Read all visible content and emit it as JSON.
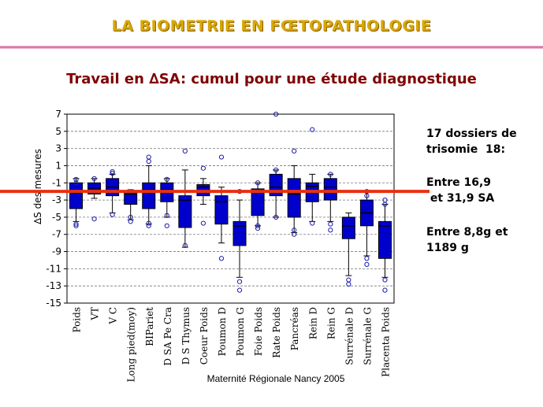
{
  "header": {
    "title": "LA BIOMETRIE EN FŒTOPATHOLOGIE",
    "subtitle": "Travail en ∆SA: cumul pour une étude diagnostique"
  },
  "notes": {
    "cases": "17 dossiers de\ntrisomie  18:",
    "ga_range": "Entre 16,9\n et 31,9 SA",
    "weight_range": "Entre 8,8g et\n1189 g"
  },
  "footer": "Maternité Régionale Nancy 2005",
  "chart_data": {
    "type": "box",
    "title": "",
    "ylabel": "∆S des mesures",
    "xlabel": "",
    "ylim": [
      -15,
      7
    ],
    "yticks": [
      7,
      5,
      3,
      1,
      -1,
      -3,
      -5,
      -7,
      -9,
      -11,
      -13,
      -15
    ],
    "reference_line": -2,
    "grid": "horizontal dashed",
    "categories": [
      "Poids",
      "VT",
      "V C",
      "Long pied(moy)",
      "BIPariet",
      "D SA Pe Cra",
      "D S Thymus",
      "Coeur Poids",
      "Poumon D",
      "Poumon G",
      "Foie Poids",
      "Rate Poids",
      "Pancréas",
      "Rein D",
      "Rein G",
      "Surrénale D",
      "Surrénale G",
      "Placenta Poids"
    ],
    "boxes": [
      {
        "q1": -4.0,
        "median": -2.2,
        "q3": -1.0,
        "whisker_low": -5.5,
        "whisker_high": -0.5,
        "outliers": [
          -0.6,
          -1.0,
          -5.8,
          -6.0
        ]
      },
      {
        "q1": -2.3,
        "median": -1.6,
        "q3": -1.0,
        "whisker_low": -2.8,
        "whisker_high": -0.5,
        "outliers": [
          -0.5,
          -5.2
        ]
      },
      {
        "q1": -2.5,
        "median": -1.5,
        "q3": -0.5,
        "whisker_low": -4.5,
        "whisker_high": 0.0,
        "outliers": [
          0.1,
          0.3,
          -4.7
        ]
      },
      {
        "q1": -3.5,
        "median": -2.3,
        "q3": -2.0,
        "whisker_low": -5.3,
        "whisker_high": -1.8,
        "outliers": [
          -5.0,
          -5.5
        ]
      },
      {
        "q1": -4.0,
        "median": -1.8,
        "q3": -1.0,
        "whisker_low": -5.8,
        "whisker_high": 1.0,
        "outliers": [
          1.5,
          2.0,
          -5.7,
          -6.0
        ]
      },
      {
        "q1": -3.2,
        "median": -1.8,
        "q3": -1.0,
        "whisker_low": -5.0,
        "whisker_high": -0.5,
        "outliers": [
          -0.6,
          -4.8,
          -6.0
        ]
      },
      {
        "q1": -6.2,
        "median": -3.0,
        "q3": -2.5,
        "whisker_low": -8.5,
        "whisker_high": 0.5,
        "outliers": [
          2.7,
          -8.3
        ]
      },
      {
        "q1": -2.5,
        "median": -1.5,
        "q3": -1.2,
        "whisker_low": -3.5,
        "whisker_high": -0.5,
        "outliers": [
          0.7,
          -5.7
        ]
      },
      {
        "q1": -5.8,
        "median": -3.2,
        "q3": -2.5,
        "whisker_low": -8.0,
        "whisker_high": -1.5,
        "outliers": [
          2.0,
          -9.8
        ]
      },
      {
        "q1": -8.3,
        "median": -6.0,
        "q3": -5.5,
        "whisker_low": -12.0,
        "whisker_high": -3.0,
        "outliers": [
          -2.0,
          -12.5,
          -13.5
        ]
      },
      {
        "q1": -4.8,
        "median": -2.0,
        "q3": -1.7,
        "whisker_low": -6.0,
        "whisker_high": -1.0,
        "outliers": [
          -1.0,
          -6.0,
          -6.3
        ]
      },
      {
        "q1": -2.5,
        "median": -1.5,
        "q3": 0.0,
        "whisker_low": -5.0,
        "whisker_high": 0.5,
        "outliers": [
          7.0,
          0.5,
          -5.0
        ]
      },
      {
        "q1": -5.0,
        "median": -2.3,
        "q3": -0.5,
        "whisker_low": -6.8,
        "whisker_high": 1.0,
        "outliers": [
          2.7,
          -6.5,
          -7.0
        ]
      },
      {
        "q1": -3.2,
        "median": -1.4,
        "q3": -1.0,
        "whisker_low": -5.5,
        "whisker_high": 0.0,
        "outliers": [
          5.2,
          -5.7
        ]
      },
      {
        "q1": -3.0,
        "median": -1.5,
        "q3": -0.5,
        "whisker_low": -5.5,
        "whisker_high": 0.0,
        "outliers": [
          0.0,
          -5.8,
          -6.5
        ]
      },
      {
        "q1": -7.5,
        "median": -6.0,
        "q3": -5.0,
        "whisker_low": -11.8,
        "whisker_high": -4.5,
        "outliers": [
          -12.3,
          -12.8
        ]
      },
      {
        "q1": -6.0,
        "median": -4.5,
        "q3": -3.0,
        "whisker_low": -9.5,
        "whisker_high": -2.0,
        "outliers": [
          -2.0,
          -2.5,
          -9.8,
          -10.5
        ]
      },
      {
        "q1": -9.8,
        "median": -6.0,
        "q3": -5.5,
        "whisker_low": -12.0,
        "whisker_high": -3.5,
        "outliers": [
          -3.0,
          -3.5,
          -12.3,
          -13.5
        ]
      }
    ]
  }
}
